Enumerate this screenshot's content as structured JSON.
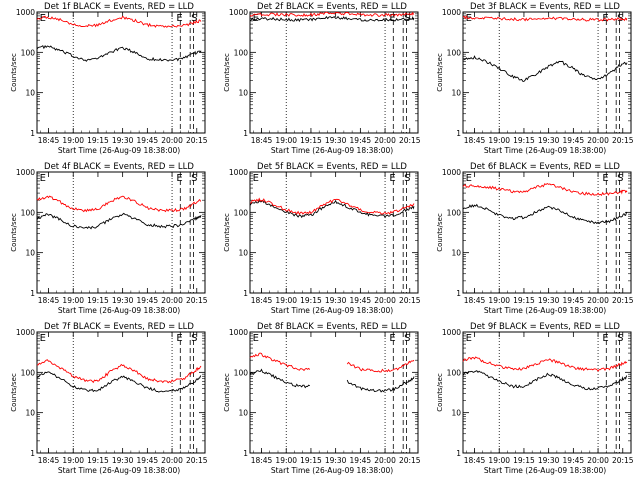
{
  "figure": {
    "xlabel": "Start Time (26-Aug-09 18:38:00)",
    "ylabel": "Counts/sec",
    "colors": {
      "events": "#000000",
      "lld": "#ff0000",
      "background": "#ffffff"
    }
  },
  "chart_data": [
    {
      "type": "line",
      "title": "Det 1f BLACK = Events, RED = LLD",
      "xlabel": "Start Time (26-Aug-09 18:38:00)",
      "ylabel": "Counts/sec",
      "y_scale": "log",
      "ylim": [
        1,
        1000
      ],
      "y_ticks": [
        "1",
        "10",
        "100",
        "1000"
      ],
      "x_tick_labels": [
        "18:45",
        "19:00",
        "19:15",
        "19:30",
        "19:45",
        "20:00",
        "20:15"
      ],
      "marker_labels": [
        "E",
        "E",
        "S"
      ],
      "series": [
        {
          "color": "#000000",
          "x": [
            "18:38",
            "18:45",
            "18:52",
            "19:00",
            "19:08",
            "19:15",
            "19:22",
            "19:30",
            "19:37",
            "19:45",
            "19:52",
            "20:00",
            "20:07",
            "20:14",
            "20:18"
          ],
          "values": [
            130,
            140,
            110,
            80,
            65,
            70,
            100,
            130,
            100,
            70,
            65,
            65,
            70,
            95,
            110
          ]
        },
        {
          "color": "#ff0000",
          "x": [
            "18:38",
            "18:45",
            "18:52",
            "19:00",
            "19:08",
            "19:15",
            "19:22",
            "19:30",
            "19:37",
            "19:45",
            "19:52",
            "20:00",
            "20:07",
            "20:14",
            "20:18"
          ],
          "values": [
            700,
            750,
            650,
            500,
            450,
            470,
            600,
            750,
            620,
            480,
            450,
            440,
            460,
            560,
            620
          ]
        }
      ]
    },
    {
      "type": "line",
      "title": "Det 2f BLACK = Events, RED = LLD",
      "xlabel": "Start Time (26-Aug-09 18:38:00)",
      "ylabel": "Counts/sec",
      "y_scale": "log",
      "ylim": [
        1,
        1000
      ],
      "y_ticks": [
        "1",
        "10",
        "100",
        "1000"
      ],
      "x_tick_labels": [
        "18:45",
        "19:00",
        "19:15",
        "19:30",
        "19:45",
        "20:00",
        "20:15"
      ],
      "marker_labels": [
        "E",
        "E",
        "S"
      ],
      "series": [
        {
          "color": "#000000",
          "x": [
            "18:38",
            "18:45",
            "18:52",
            "19:00",
            "19:08",
            "19:15",
            "19:22",
            "19:30",
            "19:37",
            "19:45",
            "19:52",
            "20:00",
            "20:07",
            "20:14",
            "20:18"
          ],
          "values": [
            650,
            680,
            670,
            650,
            640,
            650,
            700,
            720,
            690,
            650,
            640,
            640,
            650,
            680,
            700
          ]
        },
        {
          "color": "#ff0000",
          "x": [
            "18:38",
            "18:45",
            "18:52",
            "19:00",
            "19:08",
            "19:15",
            "19:22",
            "19:30",
            "19:37",
            "19:45",
            "19:52",
            "20:00",
            "20:07",
            "20:14",
            "20:18"
          ],
          "values": [
            850,
            880,
            870,
            850,
            840,
            850,
            900,
            950,
            900,
            860,
            850,
            840,
            850,
            880,
            900
          ]
        }
      ]
    },
    {
      "type": "line",
      "title": "Det 3f BLACK = Events, RED = LLD",
      "xlabel": "Start Time (26-Aug-09 18:38:00)",
      "ylabel": "Counts/sec",
      "y_scale": "log",
      "ylim": [
        1,
        1000
      ],
      "y_ticks": [
        "1",
        "10",
        "100",
        "1000"
      ],
      "x_tick_labels": [
        "18:45",
        "19:00",
        "19:15",
        "19:30",
        "19:45",
        "20:00",
        "20:15"
      ],
      "marker_labels": [
        "E",
        "E",
        "S"
      ],
      "series": [
        {
          "color": "#000000",
          "x": [
            "18:38",
            "18:45",
            "18:52",
            "19:00",
            "19:08",
            "19:15",
            "19:22",
            "19:30",
            "19:37",
            "19:45",
            "19:52",
            "20:00",
            "20:07",
            "20:14",
            "20:18"
          ],
          "values": [
            70,
            75,
            60,
            40,
            25,
            20,
            28,
            45,
            60,
            40,
            25,
            22,
            30,
            50,
            55
          ]
        },
        {
          "color": "#ff0000",
          "x": [
            "18:38",
            "18:45",
            "18:52",
            "19:00",
            "19:08",
            "19:15",
            "19:22",
            "19:30",
            "19:37",
            "19:45",
            "19:52",
            "20:00",
            "20:07",
            "20:14",
            "20:18"
          ],
          "values": [
            750,
            720,
            700,
            690,
            670,
            650,
            660,
            700,
            690,
            660,
            640,
            640,
            650,
            660,
            650
          ]
        }
      ]
    },
    {
      "type": "line",
      "title": "Det 4f BLACK = Events, RED = LLD",
      "xlabel": "Start Time (26-Aug-09 18:38:00)",
      "ylabel": "Counts/sec",
      "y_scale": "log",
      "ylim": [
        1,
        1000
      ],
      "y_ticks": [
        "1",
        "10",
        "100",
        "1000"
      ],
      "x_tick_labels": [
        "18:45",
        "19:00",
        "19:15",
        "19:30",
        "19:45",
        "20:00",
        "20:15"
      ],
      "marker_labels": [
        "E",
        "E",
        "S"
      ],
      "series": [
        {
          "color": "#000000",
          "x": [
            "18:38",
            "18:45",
            "18:52",
            "19:00",
            "19:08",
            "19:15",
            "19:22",
            "19:30",
            "19:37",
            "19:45",
            "19:52",
            "20:00",
            "20:07",
            "20:14",
            "20:18"
          ],
          "values": [
            70,
            90,
            65,
            45,
            40,
            45,
            65,
            90,
            70,
            50,
            45,
            45,
            50,
            70,
            85
          ]
        },
        {
          "color": "#ff0000",
          "x": [
            "18:38",
            "18:45",
            "18:52",
            "19:00",
            "19:08",
            "19:15",
            "19:22",
            "19:30",
            "19:37",
            "19:45",
            "19:52",
            "20:00",
            "20:07",
            "20:14",
            "20:18"
          ],
          "values": [
            200,
            250,
            180,
            120,
            110,
            120,
            180,
            250,
            190,
            130,
            115,
            110,
            120,
            170,
            200
          ]
        }
      ]
    },
    {
      "type": "line",
      "title": "Det 5f BLACK = Events, RED = LLD",
      "xlabel": "Start Time (26-Aug-09 18:38:00)",
      "ylabel": "Counts/sec",
      "y_scale": "log",
      "ylim": [
        1,
        1000
      ],
      "y_ticks": [
        "1",
        "10",
        "100",
        "1000"
      ],
      "x_tick_labels": [
        "18:45",
        "19:00",
        "19:15",
        "19:30",
        "19:45",
        "20:00",
        "20:15"
      ],
      "marker_labels": [
        "E",
        "E",
        "S"
      ],
      "series": [
        {
          "color": "#000000",
          "x": [
            "18:38",
            "18:45",
            "18:52",
            "19:00",
            "19:08",
            "19:15",
            "19:22",
            "19:30",
            "19:37",
            "19:45",
            "19:52",
            "20:00",
            "20:07",
            "20:14",
            "20:18"
          ],
          "values": [
            160,
            190,
            140,
            100,
            80,
            85,
            130,
            180,
            140,
            100,
            85,
            80,
            90,
            120,
            140
          ]
        },
        {
          "color": "#ff0000",
          "x": [
            "18:38",
            "18:45",
            "18:52",
            "19:00",
            "19:08",
            "19:15",
            "19:22",
            "19:30",
            "19:37",
            "19:45",
            "19:52",
            "20:00",
            "20:07",
            "20:14",
            "20:18"
          ],
          "values": [
            180,
            210,
            160,
            115,
            95,
            100,
            150,
            210,
            160,
            115,
            100,
            95,
            105,
            140,
            165
          ]
        }
      ]
    },
    {
      "type": "line",
      "title": "Det 6f BLACK = Events, RED = LLD",
      "xlabel": "Start Time (26-Aug-09 18:38:00)",
      "ylabel": "Counts/sec",
      "y_scale": "log",
      "ylim": [
        1,
        1000
      ],
      "y_ticks": [
        "1",
        "10",
        "100",
        "1000"
      ],
      "x_tick_labels": [
        "18:45",
        "19:00",
        "19:15",
        "19:30",
        "19:45",
        "20:00",
        "20:15"
      ],
      "marker_labels": [
        "E",
        "E",
        "S"
      ],
      "series": [
        {
          "color": "#000000",
          "x": [
            "18:38",
            "18:45",
            "18:52",
            "19:00",
            "19:08",
            "19:15",
            "19:22",
            "19:30",
            "19:37",
            "19:45",
            "19:52",
            "20:00",
            "20:07",
            "20:14",
            "20:18"
          ],
          "values": [
            130,
            150,
            120,
            85,
            70,
            75,
            100,
            140,
            110,
            75,
            60,
            55,
            60,
            80,
            95
          ]
        },
        {
          "color": "#ff0000",
          "x": [
            "18:38",
            "18:45",
            "18:52",
            "19:00",
            "19:08",
            "19:15",
            "19:22",
            "19:30",
            "19:37",
            "19:45",
            "19:52",
            "20:00",
            "20:07",
            "20:14",
            "20:18"
          ],
          "values": [
            450,
            460,
            430,
            380,
            330,
            320,
            420,
            500,
            420,
            320,
            290,
            280,
            290,
            320,
            350
          ]
        }
      ]
    },
    {
      "type": "line",
      "title": "Det 7f BLACK = Events, RED = LLD",
      "xlabel": "Start Time (26-Aug-09 18:38:00)",
      "ylabel": "Counts/sec",
      "y_scale": "log",
      "ylim": [
        1,
        1000
      ],
      "y_ticks": [
        "1",
        "10",
        "100",
        "1000"
      ],
      "x_tick_labels": [
        "18:45",
        "19:00",
        "19:15",
        "19:30",
        "19:45",
        "20:00",
        "20:15"
      ],
      "marker_labels": [
        "E",
        "E",
        "S"
      ],
      "series": [
        {
          "color": "#000000",
          "x": [
            "18:38",
            "18:45",
            "18:52",
            "19:00",
            "19:08",
            "19:15",
            "19:22",
            "19:30",
            "19:37",
            "19:45",
            "19:52",
            "20:00",
            "20:07",
            "20:14",
            "20:18"
          ],
          "values": [
            80,
            100,
            70,
            45,
            35,
            35,
            55,
            80,
            60,
            40,
            35,
            35,
            40,
            60,
            80
          ]
        },
        {
          "color": "#ff0000",
          "x": [
            "18:38",
            "18:45",
            "18:52",
            "19:00",
            "19:08",
            "19:15",
            "19:22",
            "19:30",
            "19:37",
            "19:45",
            "19:52",
            "20:00",
            "20:07",
            "20:14",
            "20:18"
          ],
          "values": [
            150,
            200,
            130,
            80,
            60,
            60,
            100,
            150,
            110,
            70,
            60,
            60,
            70,
            110,
            150
          ]
        }
      ]
    },
    {
      "type": "line",
      "title": "Det 8f BLACK = Events, RED = LLD",
      "xlabel": "Start Time (26-Aug-09 18:38:00)",
      "ylabel": "Counts/sec",
      "y_scale": "log",
      "ylim": [
        1,
        1000
      ],
      "y_ticks": [
        "1",
        "10",
        "100",
        "1000"
      ],
      "x_tick_labels": [
        "18:45",
        "19:00",
        "19:15",
        "19:30",
        "19:45",
        "20:00",
        "20:15"
      ],
      "marker_labels": [
        "E",
        "E",
        "S"
      ],
      "series": [
        {
          "color": "#000000",
          "x": [
            "18:38",
            "18:45",
            "18:52",
            "19:00",
            "19:08",
            "19:15",
            "19:22",
            "19:30",
            "19:37",
            "19:45",
            "19:52",
            "20:00",
            "20:07",
            "20:14",
            "20:18"
          ],
          "values": [
            90,
            110,
            80,
            55,
            45,
            45,
            null,
            null,
            60,
            40,
            35,
            35,
            40,
            60,
            75
          ]
        },
        {
          "color": "#ff0000",
          "x": [
            "18:38",
            "18:45",
            "18:52",
            "19:00",
            "19:08",
            "19:15",
            "19:22",
            "19:30",
            "19:37",
            "19:45",
            "19:52",
            "20:00",
            "20:07",
            "20:14",
            "20:18"
          ],
          "values": [
            250,
            280,
            200,
            150,
            120,
            120,
            null,
            null,
            170,
            120,
            110,
            110,
            120,
            170,
            210
          ]
        }
      ]
    },
    {
      "type": "line",
      "title": "Det 9f BLACK = Events, RED = LLD",
      "xlabel": "Start Time (26-Aug-09 18:38:00)",
      "ylabel": "Counts/sec",
      "y_scale": "log",
      "ylim": [
        1,
        1000
      ],
      "y_ticks": [
        "1",
        "10",
        "100",
        "1000"
      ],
      "x_tick_labels": [
        "18:45",
        "19:00",
        "19:15",
        "19:30",
        "19:45",
        "20:00",
        "20:15"
      ],
      "marker_labels": [
        "E",
        "E",
        "S"
      ],
      "series": [
        {
          "color": "#000000",
          "x": [
            "18:38",
            "18:45",
            "18:52",
            "19:00",
            "19:08",
            "19:15",
            "19:22",
            "19:30",
            "19:37",
            "19:45",
            "19:52",
            "20:00",
            "20:07",
            "20:14",
            "20:18"
          ],
          "values": [
            90,
            110,
            85,
            60,
            45,
            45,
            65,
            90,
            70,
            50,
            40,
            40,
            45,
            65,
            80
          ]
        },
        {
          "color": "#ff0000",
          "x": [
            "18:38",
            "18:45",
            "18:52",
            "19:00",
            "19:08",
            "19:15",
            "19:22",
            "19:30",
            "19:37",
            "19:45",
            "19:52",
            "20:00",
            "20:07",
            "20:14",
            "20:18"
          ],
          "values": [
            200,
            230,
            180,
            140,
            120,
            120,
            160,
            210,
            170,
            130,
            120,
            115,
            125,
            160,
            190
          ]
        }
      ]
    }
  ]
}
